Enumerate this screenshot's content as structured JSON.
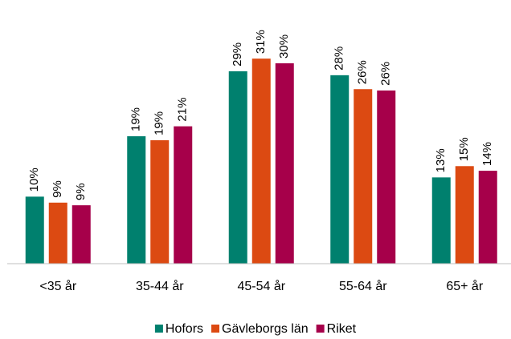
{
  "chart_data": {
    "type": "bar",
    "categories": [
      "<35 år",
      "35-44 år",
      "45-54 år",
      "55-64 år",
      "65+ år"
    ],
    "series": [
      {
        "name": "Hofors",
        "color": "#00806e",
        "values": [
          10.1,
          19.2,
          29.0,
          28.4,
          13.0
        ],
        "value_labels": [
          "10%",
          "19%",
          "29%",
          "28%",
          "13%"
        ]
      },
      {
        "name": "Gävleborgs län",
        "color": "#dc4a12",
        "values": [
          9.2,
          18.6,
          30.9,
          26.3,
          14.7
        ],
        "value_labels": [
          "9%",
          "19%",
          "31%",
          "26%",
          "15%"
        ]
      },
      {
        "name": "Riket",
        "color": "#a6004a",
        "values": [
          8.8,
          20.7,
          30.2,
          26.1,
          14.0
        ],
        "value_labels": [
          "9%",
          "21%",
          "30%",
          "26%",
          "14%"
        ]
      }
    ],
    "legend": "bottom"
  }
}
